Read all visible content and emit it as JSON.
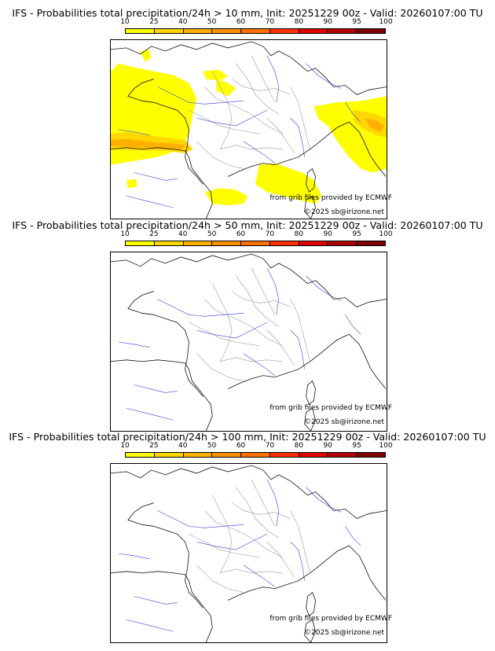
{
  "colorbar": {
    "ticks": [
      "10",
      "25",
      "40",
      "50",
      "60",
      "70",
      "80",
      "90",
      "95",
      "100"
    ],
    "colors": [
      "#ffff00",
      "#ffd700",
      "#ffb000",
      "#ff9000",
      "#ff7000",
      "#ff3000",
      "#e00000",
      "#b00000",
      "#800000"
    ]
  },
  "panels": [
    {
      "title": "IFS - Probabilities total precipitation/24h > 10 mm, Init: 20251229 00z - Valid: 20260107:00 TU",
      "credit_source": "from grib files provided by ECMWF",
      "credit_copyright": "©2025 sb@irizone.net",
      "has_precip": true
    },
    {
      "title": "IFS - Probabilities total precipitation/24h > 50 mm, Init: 20251229 00z - Valid: 20260107:00 TU",
      "credit_source": "from grib files provided by ECMWF",
      "credit_copyright": "©2025 sb@irizone.net",
      "has_precip": false
    },
    {
      "title": "IFS - Probabilities total precipitation/24h > 100 mm, Init: 20251229 00z - Valid: 20260107:00 TU",
      "credit_source": "from grib files provided by ECMWF",
      "credit_copyright": "©2025 sb@irizone.net",
      "has_precip": false
    }
  ]
}
